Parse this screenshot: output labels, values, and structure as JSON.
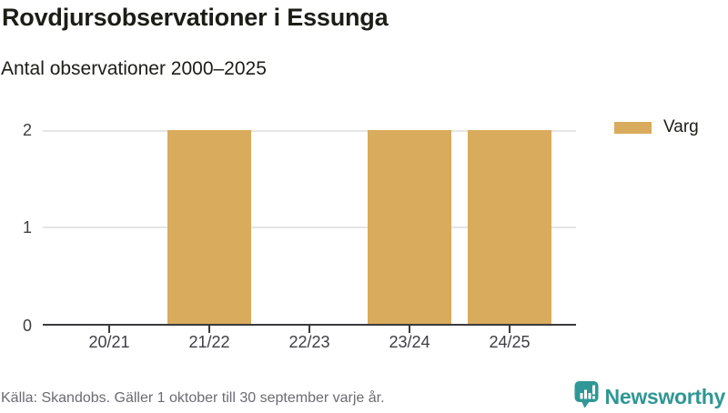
{
  "chart_data": {
    "type": "bar",
    "title": "Rovdjursobservationer i Essunga",
    "subtitle": "Antal observationer 2000–2025",
    "categories": [
      "20/21",
      "21/22",
      "22/23",
      "23/24",
      "24/25"
    ],
    "series": [
      {
        "name": "Varg",
        "values": [
          0,
          2,
          0,
          2,
          2
        ]
      }
    ],
    "ylim": [
      0,
      2
    ],
    "ytick_labels": [
      "2",
      "1",
      "0"
    ],
    "grid": true,
    "legend_position": "top-right",
    "bar_color": "#d9ab5c"
  },
  "footer": {
    "source": "Källa: Skandobs. Gäller 1 oktober till 30 september varje år.",
    "brand": "Newsworthy"
  },
  "colors": {
    "bar": "#d9ab5c",
    "teal": "#2f9795",
    "grid": "#e5e5e5",
    "axis": "#3a3a3e",
    "text_dark": "#1d1d17",
    "text_axis": "#3d3d43",
    "text_muted": "#6b6b72"
  },
  "icons": {
    "brand_icon": "newsworthy-speech-bubble-chart-icon"
  }
}
